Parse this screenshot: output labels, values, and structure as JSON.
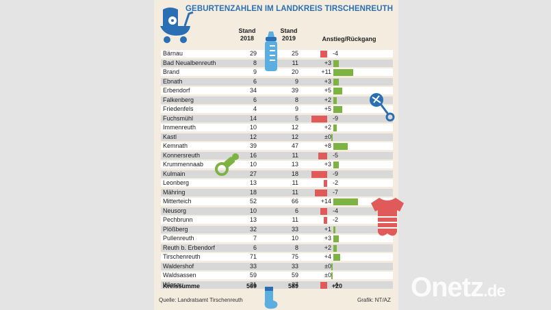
{
  "title": "GEBURTENZAHLEN IM LANDKREIS TIRSCHENREUTH",
  "columns": {
    "col2018": [
      "Stand",
      "2018"
    ],
    "col2019": [
      "Stand",
      "2019"
    ],
    "change": "Anstieg/Rückgang"
  },
  "chart_data": {
    "type": "table",
    "title": "GEBURTENZAHLEN IM LANDKREIS TIRSCHENREUTH",
    "rows": [
      {
        "name": "Bärnau",
        "y2018": 29,
        "y2019": 25,
        "change": "-4",
        "delta": -4
      },
      {
        "name": "Bad Neualbenreuth",
        "y2018": 8,
        "y2019": 11,
        "change": "+3",
        "delta": 3
      },
      {
        "name": "Brand",
        "y2018": 9,
        "y2019": 20,
        "change": "+11",
        "delta": 11
      },
      {
        "name": "Ebnath",
        "y2018": 6,
        "y2019": 9,
        "change": "+3",
        "delta": 3
      },
      {
        "name": "Erbendorf",
        "y2018": 34,
        "y2019": 39,
        "change": "+5",
        "delta": 5
      },
      {
        "name": "Falkenberg",
        "y2018": 6,
        "y2019": 8,
        "change": "+2",
        "delta": 2
      },
      {
        "name": "Friedenfels",
        "y2018": 4,
        "y2019": 9,
        "change": "+5",
        "delta": 5
      },
      {
        "name": "Fuchsmühl",
        "y2018": 14,
        "y2019": 5,
        "change": "-9",
        "delta": -9
      },
      {
        "name": "Immenreuth",
        "y2018": 10,
        "y2019": 12,
        "change": "+2",
        "delta": 2
      },
      {
        "name": "Kastl",
        "y2018": 12,
        "y2019": 12,
        "change": "±0",
        "delta": 0
      },
      {
        "name": "Kemnath",
        "y2018": 39,
        "y2019": 47,
        "change": "+8",
        "delta": 8
      },
      {
        "name": "Konnersreuth",
        "y2018": 16,
        "y2019": 11,
        "change": "-5",
        "delta": -5
      },
      {
        "name": "Krummennaab",
        "y2018": 10,
        "y2019": 13,
        "change": "+3",
        "delta": 3
      },
      {
        "name": "Kulmain",
        "y2018": 27,
        "y2019": 18,
        "change": "-9",
        "delta": -9
      },
      {
        "name": "Leonberg",
        "y2018": 13,
        "y2019": 11,
        "change": "-2",
        "delta": -2
      },
      {
        "name": "Mähring",
        "y2018": 18,
        "y2019": 11,
        "change": "-7",
        "delta": -7
      },
      {
        "name": "Mitterteich",
        "y2018": 52,
        "y2019": 66,
        "change": "+14",
        "delta": 14
      },
      {
        "name": "Neusorg",
        "y2018": 10,
        "y2019": 6,
        "change": "-4",
        "delta": -4
      },
      {
        "name": "Pechbrunn",
        "y2018": 13,
        "y2019": 11,
        "change": "-2",
        "delta": -2
      },
      {
        "name": "Plößberg",
        "y2018": 32,
        "y2019": 33,
        "change": "+1",
        "delta": 1
      },
      {
        "name": "Pullenreuth",
        "y2018": 7,
        "y2019": 10,
        "change": "+3",
        "delta": 3
      },
      {
        "name": "Reuth b. Erbendorf",
        "y2018": 6,
        "y2019": 8,
        "change": "+2",
        "delta": 2
      },
      {
        "name": "Tirschenreuth",
        "y2018": 71,
        "y2019": 75,
        "change": "+4",
        "delta": 4
      },
      {
        "name": "Waldershof",
        "y2018": 33,
        "y2019": 33,
        "change": "±0",
        "delta": 0
      },
      {
        "name": "Waldsassen",
        "y2018": 59,
        "y2019": 59,
        "change": "±0",
        "delta": 0
      },
      {
        "name": "Wiesau",
        "y2018": 31,
        "y2019": 27,
        "change": "-4",
        "delta": -4
      }
    ],
    "total": {
      "name": "Kreissumme",
      "y2018": 569,
      "y2019": 589,
      "change": "+20"
    },
    "colors": {
      "increase": "#7cb342",
      "decrease": "#e05a5a",
      "zero": "#7cb342"
    }
  },
  "footer": {
    "source": "Quelle: Landratsamt Tirschenreuth",
    "credit": "Grafik: NT/AZ"
  },
  "watermark": {
    "main": "Onetz",
    "suffix": ".de"
  },
  "colors": {
    "title": "#2a6fb4",
    "icon_blue": "#2a6fb4",
    "pacifier": "#7cb342",
    "onesie": "#e05a5a",
    "bottle": "#5aaee0"
  },
  "icons": [
    "stroller-icon",
    "baby-bottle-icon",
    "rattle-icon",
    "pacifier-icon",
    "onesie-icon",
    "sock-icon"
  ]
}
